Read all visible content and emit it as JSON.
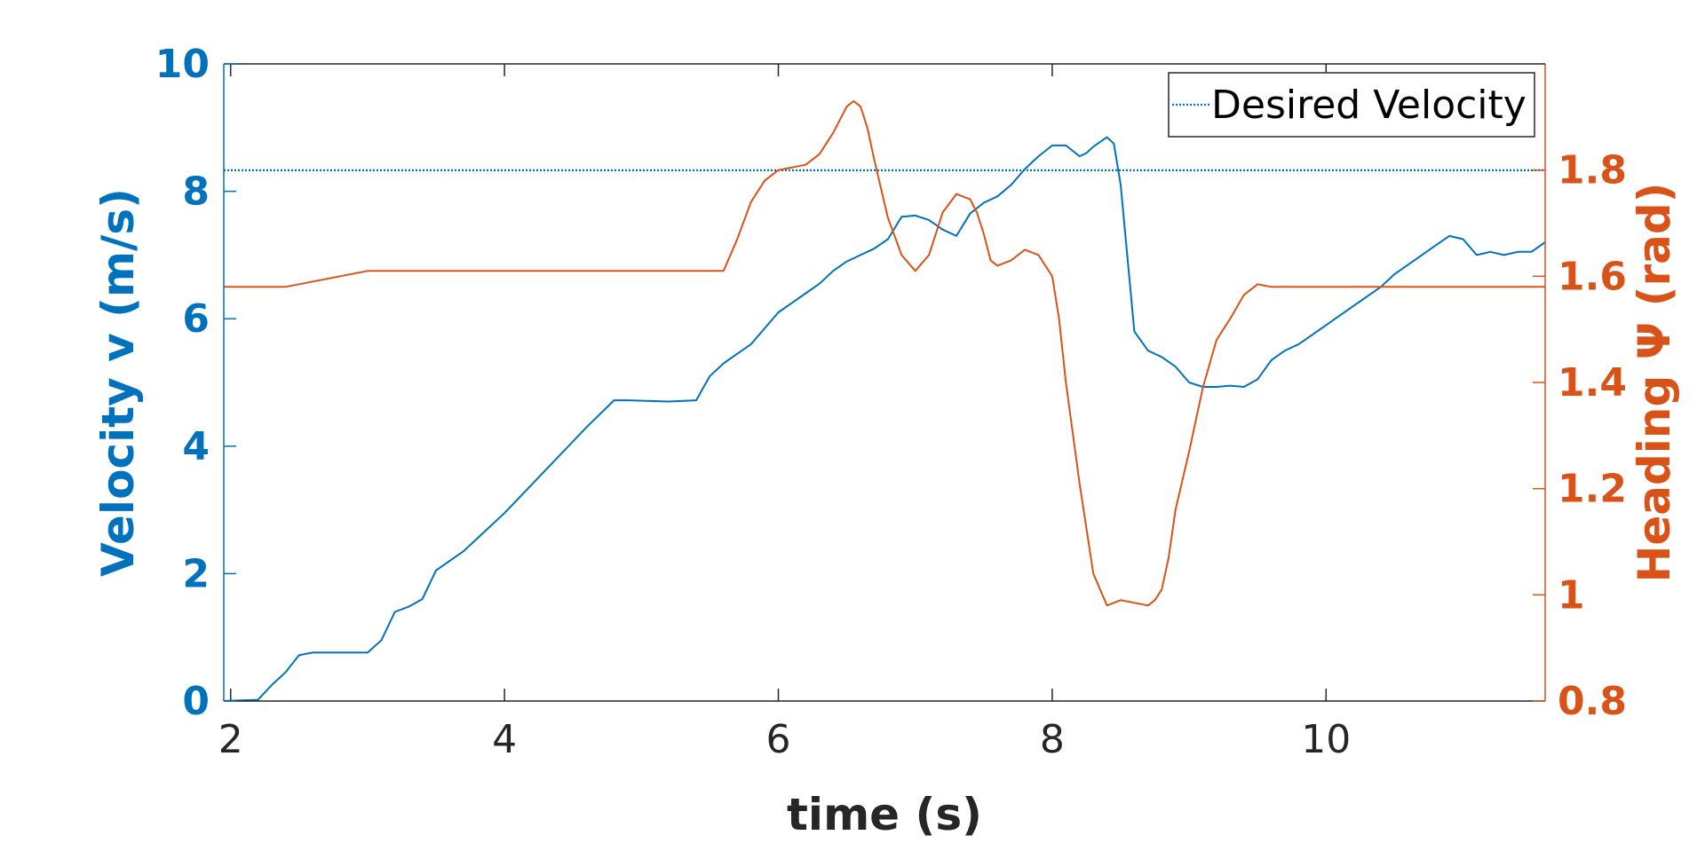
{
  "chart_data": {
    "type": "line",
    "xlabel": "time (s)",
    "ylabel_left": "Velocity v (m/s)",
    "ylabel_right": "Heading Ψ (rad)",
    "xlim": [
      1.95,
      11.6
    ],
    "ylim_left": [
      0,
      10
    ],
    "ylim_right": [
      0.8,
      2.0
    ],
    "xticks": [
      2,
      4,
      6,
      8,
      10
    ],
    "xtick_labels": [
      "2",
      "4",
      "6",
      "8",
      "10"
    ],
    "yticks_left": [
      0,
      2,
      4,
      6,
      8,
      10
    ],
    "ytick_labels_left": [
      "0",
      "2",
      "4",
      "6",
      "8",
      "10"
    ],
    "yticks_right": [
      0.8,
      1.0,
      1.2,
      1.4,
      1.6,
      1.8
    ],
    "ytick_labels_right": [
      "0.8",
      "1",
      "1.2",
      "1.4",
      "1.6",
      "1.8"
    ],
    "grid": false,
    "legend": {
      "position": "top-right",
      "entries": [
        "Desired Velocity"
      ]
    },
    "colors": {
      "velocity": "#0072BD",
      "heading": "#D95319"
    },
    "series": [
      {
        "name": "Desired Velocity",
        "axis": "left",
        "style": "dotted",
        "x": [
          1.95,
          11.6
        ],
        "y": [
          8.33,
          8.33
        ]
      },
      {
        "axis": "left",
        "style": "solid",
        "x": [
          1.95,
          2.2,
          2.3,
          2.4,
          2.5,
          2.6,
          2.8,
          3.0,
          3.1,
          3.2,
          3.3,
          3.4,
          3.5,
          3.6,
          3.7,
          3.8,
          4.0,
          4.2,
          4.4,
          4.6,
          4.8,
          4.9,
          5.2,
          5.4,
          5.5,
          5.6,
          5.7,
          5.8,
          5.9,
          6.0,
          6.1,
          6.2,
          6.3,
          6.4,
          6.5,
          6.6,
          6.7,
          6.8,
          6.9,
          7.0,
          7.1,
          7.2,
          7.3,
          7.4,
          7.5,
          7.6,
          7.7,
          7.8,
          7.9,
          8.0,
          8.1,
          8.2,
          8.25,
          8.3,
          8.4,
          8.45,
          8.5,
          8.55,
          8.6,
          8.7,
          8.8,
          8.9,
          9.0,
          9.1,
          9.2,
          9.3,
          9.4,
          9.5,
          9.6,
          9.7,
          9.8,
          9.9,
          10.0,
          10.1,
          10.2,
          10.3,
          10.4,
          10.5,
          10.6,
          10.7,
          10.8,
          10.9,
          11.0,
          11.1,
          11.2,
          11.3,
          11.4,
          11.5,
          11.6
        ],
        "y": [
          0,
          0.02,
          0.25,
          0.45,
          0.72,
          0.76,
          0.76,
          0.76,
          0.95,
          1.4,
          1.48,
          1.6,
          2.05,
          2.2,
          2.35,
          2.55,
          2.95,
          3.4,
          3.85,
          4.3,
          4.72,
          4.72,
          4.7,
          4.72,
          5.1,
          5.3,
          5.45,
          5.6,
          5.85,
          6.1,
          6.25,
          6.4,
          6.55,
          6.75,
          6.9,
          7.0,
          7.1,
          7.25,
          7.6,
          7.62,
          7.55,
          7.4,
          7.3,
          7.65,
          7.82,
          7.92,
          8.1,
          8.35,
          8.55,
          8.72,
          8.72,
          8.55,
          8.6,
          8.7,
          8.85,
          8.75,
          8.1,
          6.95,
          5.8,
          5.5,
          5.4,
          5.25,
          5.0,
          4.93,
          4.93,
          4.95,
          4.93,
          5.05,
          5.35,
          5.5,
          5.6,
          5.75,
          5.9,
          6.05,
          6.2,
          6.35,
          6.5,
          6.7,
          6.85,
          7.0,
          7.15,
          7.3,
          7.25,
          7.0,
          7.05,
          7.0,
          7.05,
          7.05,
          7.2
        ]
      },
      {
        "axis": "right",
        "style": "solid",
        "x": [
          1.95,
          2.4,
          2.6,
          2.8,
          3.0,
          4.0,
          5.0,
          5.6,
          5.7,
          5.8,
          5.9,
          6.0,
          6.1,
          6.2,
          6.3,
          6.4,
          6.5,
          6.55,
          6.6,
          6.65,
          6.7,
          6.8,
          6.9,
          7.0,
          7.1,
          7.15,
          7.2,
          7.3,
          7.4,
          7.45,
          7.5,
          7.55,
          7.6,
          7.7,
          7.8,
          7.9,
          8.0,
          8.05,
          8.1,
          8.2,
          8.3,
          8.4,
          8.5,
          8.6,
          8.7,
          8.75,
          8.8,
          8.85,
          8.9,
          9.0,
          9.1,
          9.2,
          9.3,
          9.4,
          9.5,
          9.6,
          9.7,
          9.8,
          9.9,
          10.0,
          11.0,
          11.6
        ],
        "y": [
          1.58,
          1.58,
          1.59,
          1.6,
          1.61,
          1.61,
          1.61,
          1.61,
          1.67,
          1.74,
          1.78,
          1.8,
          1.805,
          1.81,
          1.83,
          1.87,
          1.92,
          1.93,
          1.92,
          1.88,
          1.82,
          1.71,
          1.64,
          1.61,
          1.64,
          1.68,
          1.72,
          1.755,
          1.745,
          1.72,
          1.68,
          1.63,
          1.62,
          1.63,
          1.65,
          1.64,
          1.6,
          1.52,
          1.4,
          1.21,
          1.04,
          0.98,
          0.99,
          0.985,
          0.98,
          0.99,
          1.01,
          1.07,
          1.16,
          1.27,
          1.39,
          1.48,
          1.52,
          1.565,
          1.585,
          1.58,
          1.58,
          1.58,
          1.58,
          1.58,
          1.58,
          1.58
        ]
      }
    ]
  }
}
